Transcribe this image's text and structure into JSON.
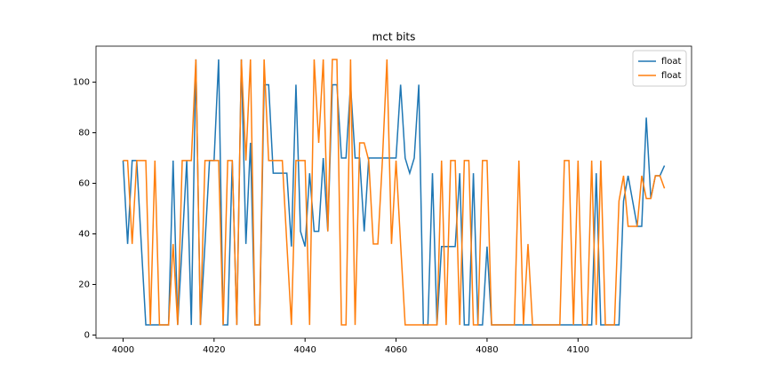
{
  "chart_data": {
    "type": "line",
    "title": "mct bits",
    "x": [
      4000,
      4001,
      4002,
      4003,
      4004,
      4005,
      4006,
      4007,
      4008,
      4009,
      4010,
      4011,
      4012,
      4013,
      4014,
      4015,
      4016,
      4017,
      4018,
      4019,
      4020,
      4021,
      4022,
      4023,
      4024,
      4025,
      4026,
      4027,
      4028,
      4029,
      4030,
      4031,
      4032,
      4033,
      4034,
      4035,
      4036,
      4037,
      4038,
      4039,
      4040,
      4041,
      4042,
      4043,
      4044,
      4045,
      4046,
      4047,
      4048,
      4049,
      4050,
      4051,
      4052,
      4053,
      4054,
      4055,
      4056,
      4057,
      4058,
      4059,
      4060,
      4061,
      4062,
      4063,
      4064,
      4065,
      4066,
      4067,
      4068,
      4069,
      4070,
      4071,
      4072,
      4073,
      4074,
      4075,
      4076,
      4077,
      4078,
      4079,
      4080,
      4081,
      4082,
      4083,
      4084,
      4085,
      4086,
      4087,
      4088,
      4089,
      4090,
      4091,
      4092,
      4093,
      4094,
      4095,
      4096,
      4097,
      4098,
      4099,
      4100,
      4101,
      4102,
      4103,
      4104,
      4105,
      4106,
      4107,
      4108,
      4109,
      4110,
      4111,
      4112,
      4113,
      4114,
      4115,
      4116,
      4117,
      4118,
      4119
    ],
    "series": [
      {
        "name": "float",
        "color": "#1f77b4",
        "values": [
          69,
          36,
          69,
          69,
          36,
          4,
          4,
          4,
          4,
          4,
          4,
          69,
          4,
          36,
          69,
          4,
          109,
          4,
          36,
          69,
          69,
          109,
          4,
          4,
          69,
          4,
          109,
          36,
          76,
          4,
          4,
          99,
          99,
          64,
          64,
          64,
          64,
          35,
          99,
          41,
          35,
          64,
          41,
          41,
          70,
          41,
          99,
          99,
          70,
          70,
          99,
          70,
          70,
          41,
          70,
          70,
          70,
          70,
          70,
          70,
          70,
          99,
          70,
          64,
          70,
          99,
          4,
          4,
          64,
          4,
          35,
          35,
          35,
          35,
          64,
          4,
          4,
          64,
          4,
          4,
          35,
          4,
          4,
          4,
          4,
          4,
          4,
          4,
          4,
          4,
          4,
          4,
          4,
          4,
          4,
          4,
          4,
          4,
          4,
          4,
          4,
          4,
          4,
          4,
          64,
          4,
          4,
          4,
          4,
          4,
          53,
          63,
          53,
          43,
          43,
          86,
          54,
          63,
          63,
          67
        ]
      },
      {
        "name": "float",
        "color": "#ff7f0e",
        "values": [
          69,
          69,
          36,
          69,
          69,
          69,
          4,
          69,
          4,
          4,
          4,
          36,
          4,
          69,
          69,
          69,
          109,
          4,
          69,
          69,
          69,
          69,
          4,
          69,
          69,
          4,
          109,
          69,
          109,
          4,
          4,
          109,
          69,
          69,
          69,
          69,
          36,
          4,
          69,
          69,
          69,
          4,
          109,
          76,
          109,
          41,
          109,
          109,
          4,
          4,
          109,
          4,
          76,
          76,
          69,
          36,
          36,
          69,
          109,
          36,
          69,
          36,
          4,
          4,
          4,
          4,
          4,
          4,
          4,
          4,
          69,
          4,
          69,
          69,
          4,
          69,
          69,
          4,
          4,
          69,
          69,
          4,
          4,
          4,
          4,
          4,
          4,
          69,
          4,
          36,
          4,
          4,
          4,
          4,
          4,
          4,
          4,
          69,
          69,
          4,
          69,
          4,
          4,
          69,
          4,
          69,
          4,
          4,
          4,
          53,
          63,
          43,
          43,
          43,
          63,
          54,
          54,
          63,
          63,
          58
        ]
      }
    ],
    "xlim": [
      3994.05,
      4124.95
    ],
    "xticks": [
      4000,
      4020,
      4040,
      4060,
      4080,
      4100
    ],
    "ylim": [
      -1.25,
      114.25
    ],
    "yticks": [
      0,
      20,
      40,
      60,
      80,
      100
    ],
    "legend": "upper right"
  }
}
